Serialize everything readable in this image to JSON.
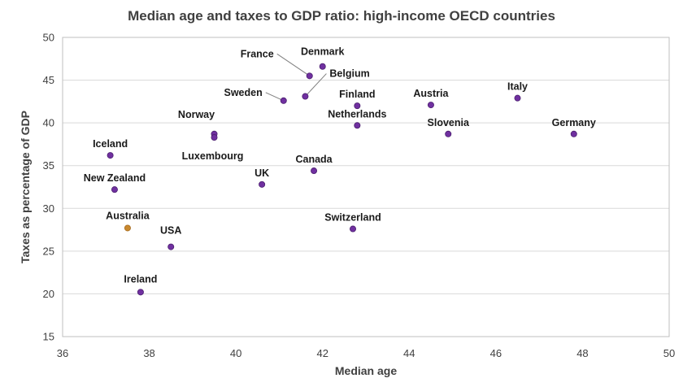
{
  "chart_data": {
    "type": "scatter",
    "title": "Median age and taxes to GDP ratio: high-income OECD countries",
    "xlabel": "Median age",
    "ylabel": "Taxes as percentage of GDP",
    "xlim": [
      36,
      50
    ],
    "ylim": [
      15,
      50
    ],
    "xticks": [
      36,
      38,
      40,
      42,
      44,
      46,
      48,
      50
    ],
    "yticks": [
      15,
      20,
      25,
      30,
      35,
      40,
      45,
      50
    ],
    "grid": "horizontal",
    "point_color": "#7030a0",
    "highlight_color": "#c55a11",
    "highlight_point_color": "#c9892f",
    "points": [
      {
        "label": "Denmark",
        "x": 42.0,
        "y": 46.6
      },
      {
        "label": "France",
        "x": 41.7,
        "y": 45.5
      },
      {
        "label": "Belgium",
        "x": 41.6,
        "y": 43.1
      },
      {
        "label": "Sweden",
        "x": 41.1,
        "y": 42.6
      },
      {
        "label": "Finland",
        "x": 42.8,
        "y": 42.0
      },
      {
        "label": "Netherlands",
        "x": 42.8,
        "y": 39.7
      },
      {
        "label": "Austria",
        "x": 44.5,
        "y": 42.1
      },
      {
        "label": "Italy",
        "x": 46.5,
        "y": 42.9
      },
      {
        "label": "Slovenia",
        "x": 44.9,
        "y": 38.7
      },
      {
        "label": "Germany",
        "x": 47.8,
        "y": 38.7
      },
      {
        "label": "Norway",
        "x": 39.5,
        "y": 38.7
      },
      {
        "label": "Luxembourg",
        "x": 39.5,
        "y": 38.3
      },
      {
        "label": "Iceland",
        "x": 37.1,
        "y": 36.2
      },
      {
        "label": "Canada",
        "x": 41.8,
        "y": 34.4
      },
      {
        "label": "UK",
        "x": 40.6,
        "y": 32.8
      },
      {
        "label": "New Zealand",
        "x": 37.2,
        "y": 32.2
      },
      {
        "label": "Australia",
        "x": 37.5,
        "y": 27.7,
        "highlight": true
      },
      {
        "label": "Switzerland",
        "x": 42.7,
        "y": 27.6
      },
      {
        "label": "USA",
        "x": 38.5,
        "y": 25.5
      },
      {
        "label": "Ireland",
        "x": 37.8,
        "y": 20.2
      }
    ]
  }
}
